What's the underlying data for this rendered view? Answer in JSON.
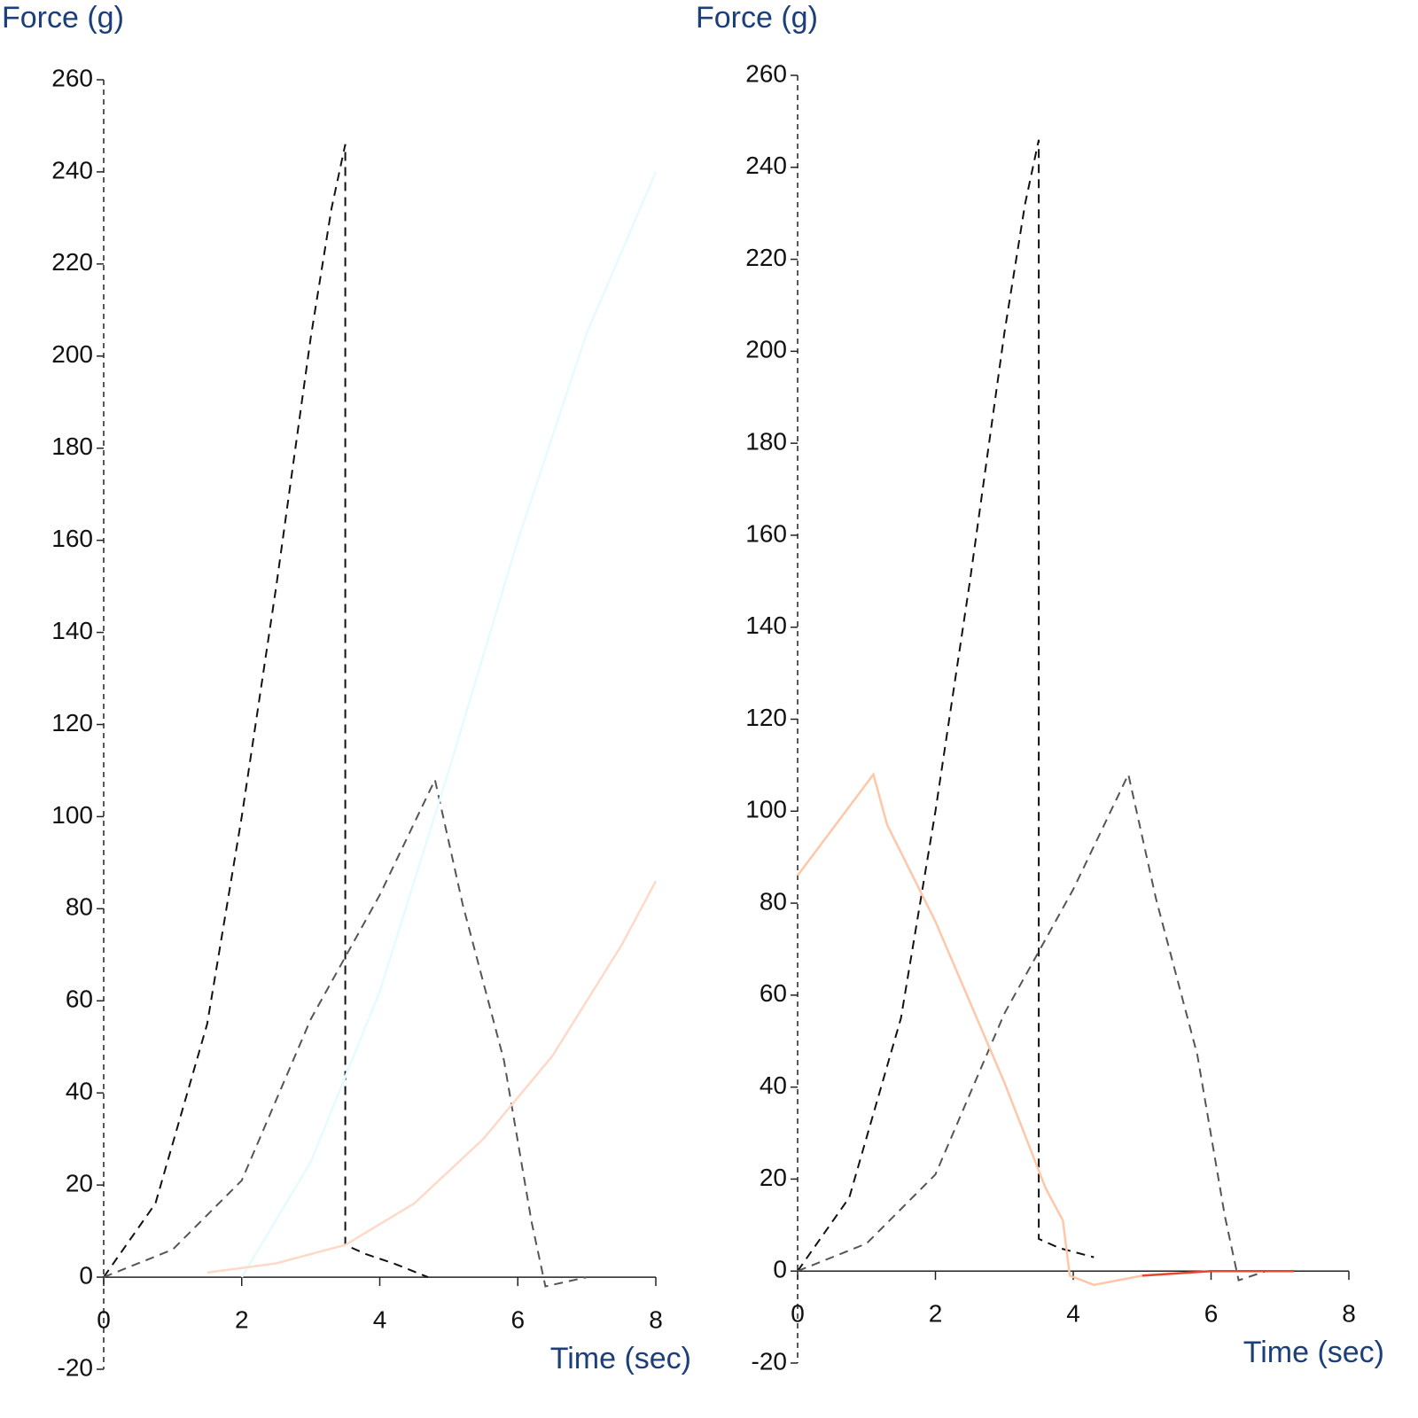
{
  "chart_data": [
    {
      "type": "line",
      "ylabel": "Force (g)",
      "xlabel": "Time (sec)",
      "xlim": [
        0,
        8
      ],
      "xticks": [
        0,
        2,
        4,
        6,
        8
      ],
      "ylim": [
        -20,
        260
      ],
      "yticks": [
        -20,
        0,
        20,
        40,
        60,
        80,
        100,
        120,
        140,
        160,
        180,
        200,
        220,
        240,
        260
      ],
      "series": [
        {
          "color": "#111111",
          "dash": true,
          "x": [
            0,
            0.75,
            1.5,
            2,
            2.5,
            3,
            3.3,
            3.5,
            3.5,
            3.8,
            4.2,
            4.7
          ],
          "values": [
            0,
            16,
            55,
            100,
            150,
            204,
            232,
            246,
            7,
            5,
            3,
            0
          ]
        },
        {
          "color": "#555555",
          "dash": true,
          "x": [
            0,
            1,
            2,
            3,
            4,
            4.8,
            5.2,
            5.8,
            6.2,
            6.4,
            7
          ],
          "values": [
            0,
            6,
            21,
            56,
            83,
            108,
            81,
            47,
            12,
            -2,
            0
          ]
        },
        {
          "color": "#e6fbff",
          "dash": false,
          "x": [
            2,
            3,
            4,
            5,
            6,
            7,
            8
          ],
          "values": [
            0,
            25,
            62,
            110,
            160,
            205,
            240
          ]
        },
        {
          "color": "#ffd9c8",
          "dash": false,
          "x": [
            1.5,
            2.5,
            3.5,
            4.5,
            5.5,
            6.5,
            7.5,
            8
          ],
          "values": [
            1,
            3,
            7,
            16,
            30,
            48,
            72,
            86
          ]
        }
      ]
    },
    {
      "type": "line",
      "ylabel": "Force (g)",
      "xlabel": "Time (sec)",
      "xlim": [
        0,
        8
      ],
      "xticks": [
        0,
        2,
        4,
        6,
        8
      ],
      "ylim": [
        -20,
        260
      ],
      "yticks": [
        -20,
        0,
        20,
        40,
        60,
        80,
        100,
        120,
        140,
        160,
        180,
        200,
        220,
        240,
        260
      ],
      "series": [
        {
          "color": "#111111",
          "dash": true,
          "x": [
            0,
            0.75,
            1.5,
            2,
            2.5,
            3,
            3.3,
            3.5,
            3.5,
            3.8,
            4.3
          ],
          "values": [
            0,
            16,
            55,
            100,
            150,
            204,
            232,
            246,
            7,
            5,
            3
          ]
        },
        {
          "color": "#555555",
          "dash": true,
          "x": [
            0,
            1,
            2,
            3,
            4,
            4.8,
            5.2,
            5.8,
            6.2,
            6.4,
            6.8
          ],
          "values": [
            0,
            6,
            21,
            56,
            83,
            108,
            81,
            47,
            12,
            -2,
            0
          ]
        },
        {
          "color": "#ffc6a8",
          "dash": false,
          "x": [
            0,
            1.1,
            1.3,
            2,
            3,
            3.6,
            3.85,
            3.95,
            4.3,
            5
          ],
          "values": [
            86,
            108,
            97,
            76,
            41,
            18,
            11,
            -1,
            -3,
            -1
          ]
        },
        {
          "color": "#e8452c",
          "dash": false,
          "x": [
            5,
            6,
            7.2
          ],
          "values": [
            -1,
            0,
            0
          ]
        }
      ]
    }
  ]
}
